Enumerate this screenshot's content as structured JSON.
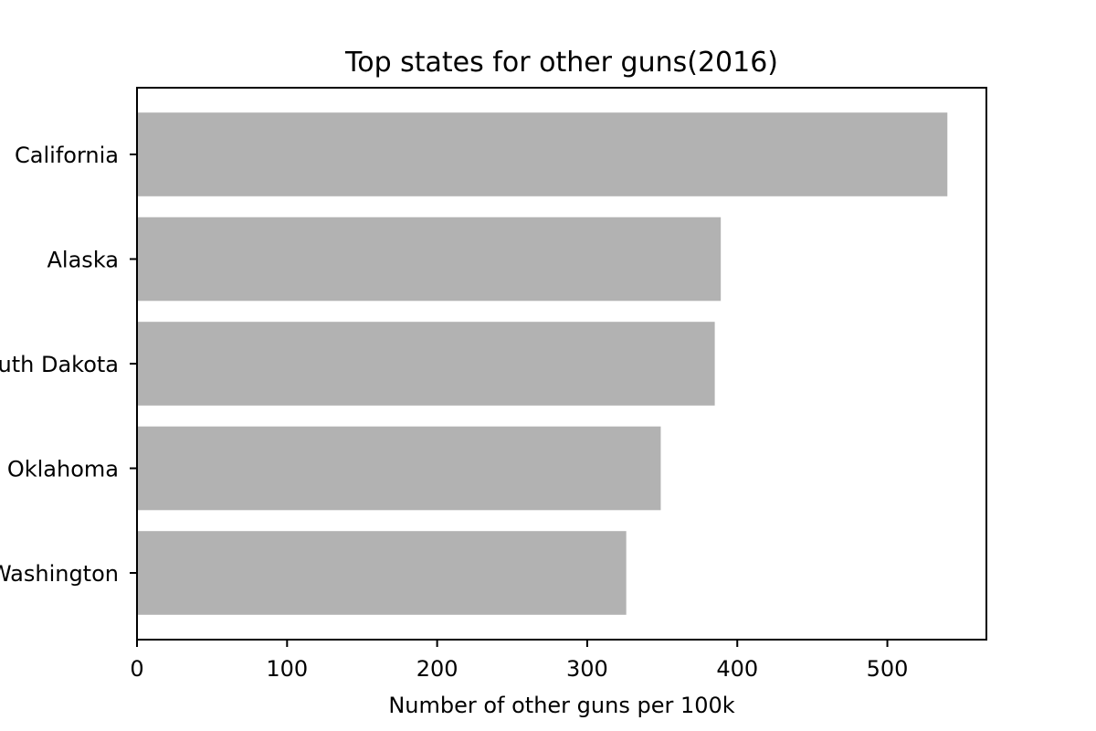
{
  "chart_data": {
    "type": "bar",
    "orientation": "horizontal",
    "title": "Top states for other guns(2016)",
    "xlabel": "Number of other guns per 100k",
    "ylabel": "",
    "categories": [
      "California",
      "Alaska",
      "South Dakota",
      "Oklahoma",
      "Washington"
    ],
    "values": [
      540,
      389,
      385,
      349,
      326
    ],
    "xlim": [
      0,
      566
    ],
    "xticks": [
      0,
      100,
      200,
      300,
      400,
      500
    ],
    "grid": false,
    "bar_color": "#b2b2b2"
  }
}
